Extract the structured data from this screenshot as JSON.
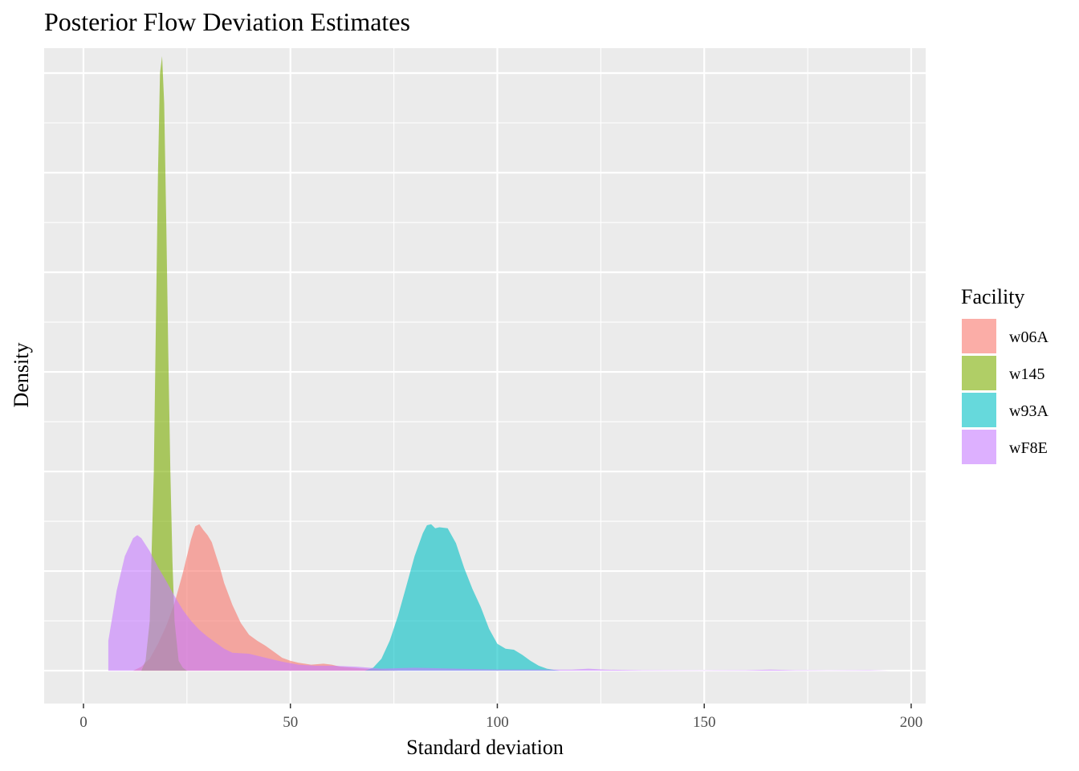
{
  "chart_data": {
    "type": "area",
    "title": "Posterior Flow Deviation Estimates",
    "xlabel": "Standard deviation",
    "ylabel": "Density",
    "xlim": [
      -9.5,
      203.5
    ],
    "ylim": [
      -0.0033,
      0.0625
    ],
    "x_ticks": [
      0,
      50,
      100,
      150,
      200
    ],
    "x_tick_labels": [
      "0",
      "50",
      "100",
      "150",
      "200"
    ],
    "y_tick_labels_shown": false,
    "grid": true,
    "legend": {
      "title": "Facility",
      "placement": "right",
      "entries": [
        "w06A",
        "w145",
        "w93A",
        "wF8E"
      ]
    },
    "series": [
      {
        "name": "w06A",
        "color": "#F8766D",
        "points": [
          [
            12,
            0
          ],
          [
            14,
            0.0004
          ],
          [
            16,
            0.0012
          ],
          [
            18,
            0.0027
          ],
          [
            20,
            0.0045
          ],
          [
            22,
            0.0068
          ],
          [
            24,
            0.0098
          ],
          [
            26,
            0.0132
          ],
          [
            27,
            0.0145
          ],
          [
            28,
            0.0147
          ],
          [
            29,
            0.0141
          ],
          [
            30,
            0.0136
          ],
          [
            31,
            0.0129
          ],
          [
            32,
            0.0116
          ],
          [
            33,
            0.0103
          ],
          [
            34,
            0.0088
          ],
          [
            36,
            0.0066
          ],
          [
            38,
            0.0048
          ],
          [
            40,
            0.0036
          ],
          [
            42,
            0.003
          ],
          [
            44,
            0.0025
          ],
          [
            46,
            0.0019
          ],
          [
            48,
            0.0013
          ],
          [
            50,
            0.001
          ],
          [
            52,
            0.0008
          ],
          [
            55,
            0.0006
          ],
          [
            58,
            0.0007
          ],
          [
            60,
            0.0006
          ],
          [
            62,
            0.0004
          ],
          [
            65,
            0.0003
          ],
          [
            68,
            0.0002
          ],
          [
            72,
            0.0001
          ],
          [
            76,
            0
          ]
        ]
      },
      {
        "name": "w145",
        "color": "#7CAE00",
        "points": [
          [
            14,
            0
          ],
          [
            15,
            0.001
          ],
          [
            16,
            0.005
          ],
          [
            17,
            0.02
          ],
          [
            17.5,
            0.035
          ],
          [
            18,
            0.05
          ],
          [
            18.5,
            0.06
          ],
          [
            19,
            0.0617
          ],
          [
            19.5,
            0.057
          ],
          [
            20,
            0.045
          ],
          [
            20.5,
            0.032
          ],
          [
            21,
            0.02
          ],
          [
            21.5,
            0.011
          ],
          [
            22,
            0.005
          ],
          [
            23,
            0.001
          ],
          [
            24,
            0.0003
          ],
          [
            25,
            0
          ]
        ]
      },
      {
        "name": "w93A",
        "color": "#00BFC4",
        "points": [
          [
            68,
            0
          ],
          [
            70,
            0.0003
          ],
          [
            72,
            0.0012
          ],
          [
            74,
            0.003
          ],
          [
            76,
            0.0055
          ],
          [
            78,
            0.0085
          ],
          [
            80,
            0.0115
          ],
          [
            82,
            0.0138
          ],
          [
            83,
            0.0146
          ],
          [
            84,
            0.0147
          ],
          [
            85,
            0.0143
          ],
          [
            86,
            0.0144
          ],
          [
            88,
            0.0143
          ],
          [
            90,
            0.0128
          ],
          [
            92,
            0.0103
          ],
          [
            94,
            0.0082
          ],
          [
            96,
            0.0064
          ],
          [
            98,
            0.0042
          ],
          [
            100,
            0.0027
          ],
          [
            102,
            0.0022
          ],
          [
            104,
            0.0021
          ],
          [
            106,
            0.0016
          ],
          [
            108,
            0.001
          ],
          [
            110,
            0.0005
          ],
          [
            112,
            0.0002
          ],
          [
            115,
            0
          ]
        ]
      },
      {
        "name": "wF8E",
        "color": "#C77CFF",
        "points": [
          [
            6,
            0
          ],
          [
            6,
            0.003
          ],
          [
            7,
            0.0055
          ],
          [
            8,
            0.008
          ],
          [
            10,
            0.0115
          ],
          [
            12,
            0.0133
          ],
          [
            13,
            0.0136
          ],
          [
            14,
            0.0133
          ],
          [
            16,
            0.012
          ],
          [
            18,
            0.0104
          ],
          [
            20,
            0.009
          ],
          [
            22,
            0.0075
          ],
          [
            24,
            0.0061
          ],
          [
            26,
            0.005
          ],
          [
            28,
            0.0041
          ],
          [
            30,
            0.0034
          ],
          [
            32,
            0.0028
          ],
          [
            34,
            0.0022
          ],
          [
            36,
            0.0018
          ],
          [
            40,
            0.0017
          ],
          [
            44,
            0.0013
          ],
          [
            48,
            0.0009
          ],
          [
            52,
            0.0006
          ],
          [
            56,
            0.0005
          ],
          [
            60,
            0.0005
          ],
          [
            66,
            0.0004
          ],
          [
            72,
            0.0002
          ],
          [
            80,
            0.0003
          ],
          [
            90,
            0.0002
          ],
          [
            100,
            0.0001
          ],
          [
            110,
            0.0001
          ],
          [
            118,
            0.0001
          ],
          [
            122,
            0.0002
          ],
          [
            126,
            0.0001
          ],
          [
            135,
            5e-05
          ],
          [
            150,
            3e-05
          ],
          [
            160,
            5e-05
          ],
          [
            166,
            0.0001
          ],
          [
            172,
            5e-05
          ],
          [
            180,
            3e-05
          ],
          [
            190,
            5e-05
          ],
          [
            195,
            0
          ]
        ]
      }
    ]
  }
}
